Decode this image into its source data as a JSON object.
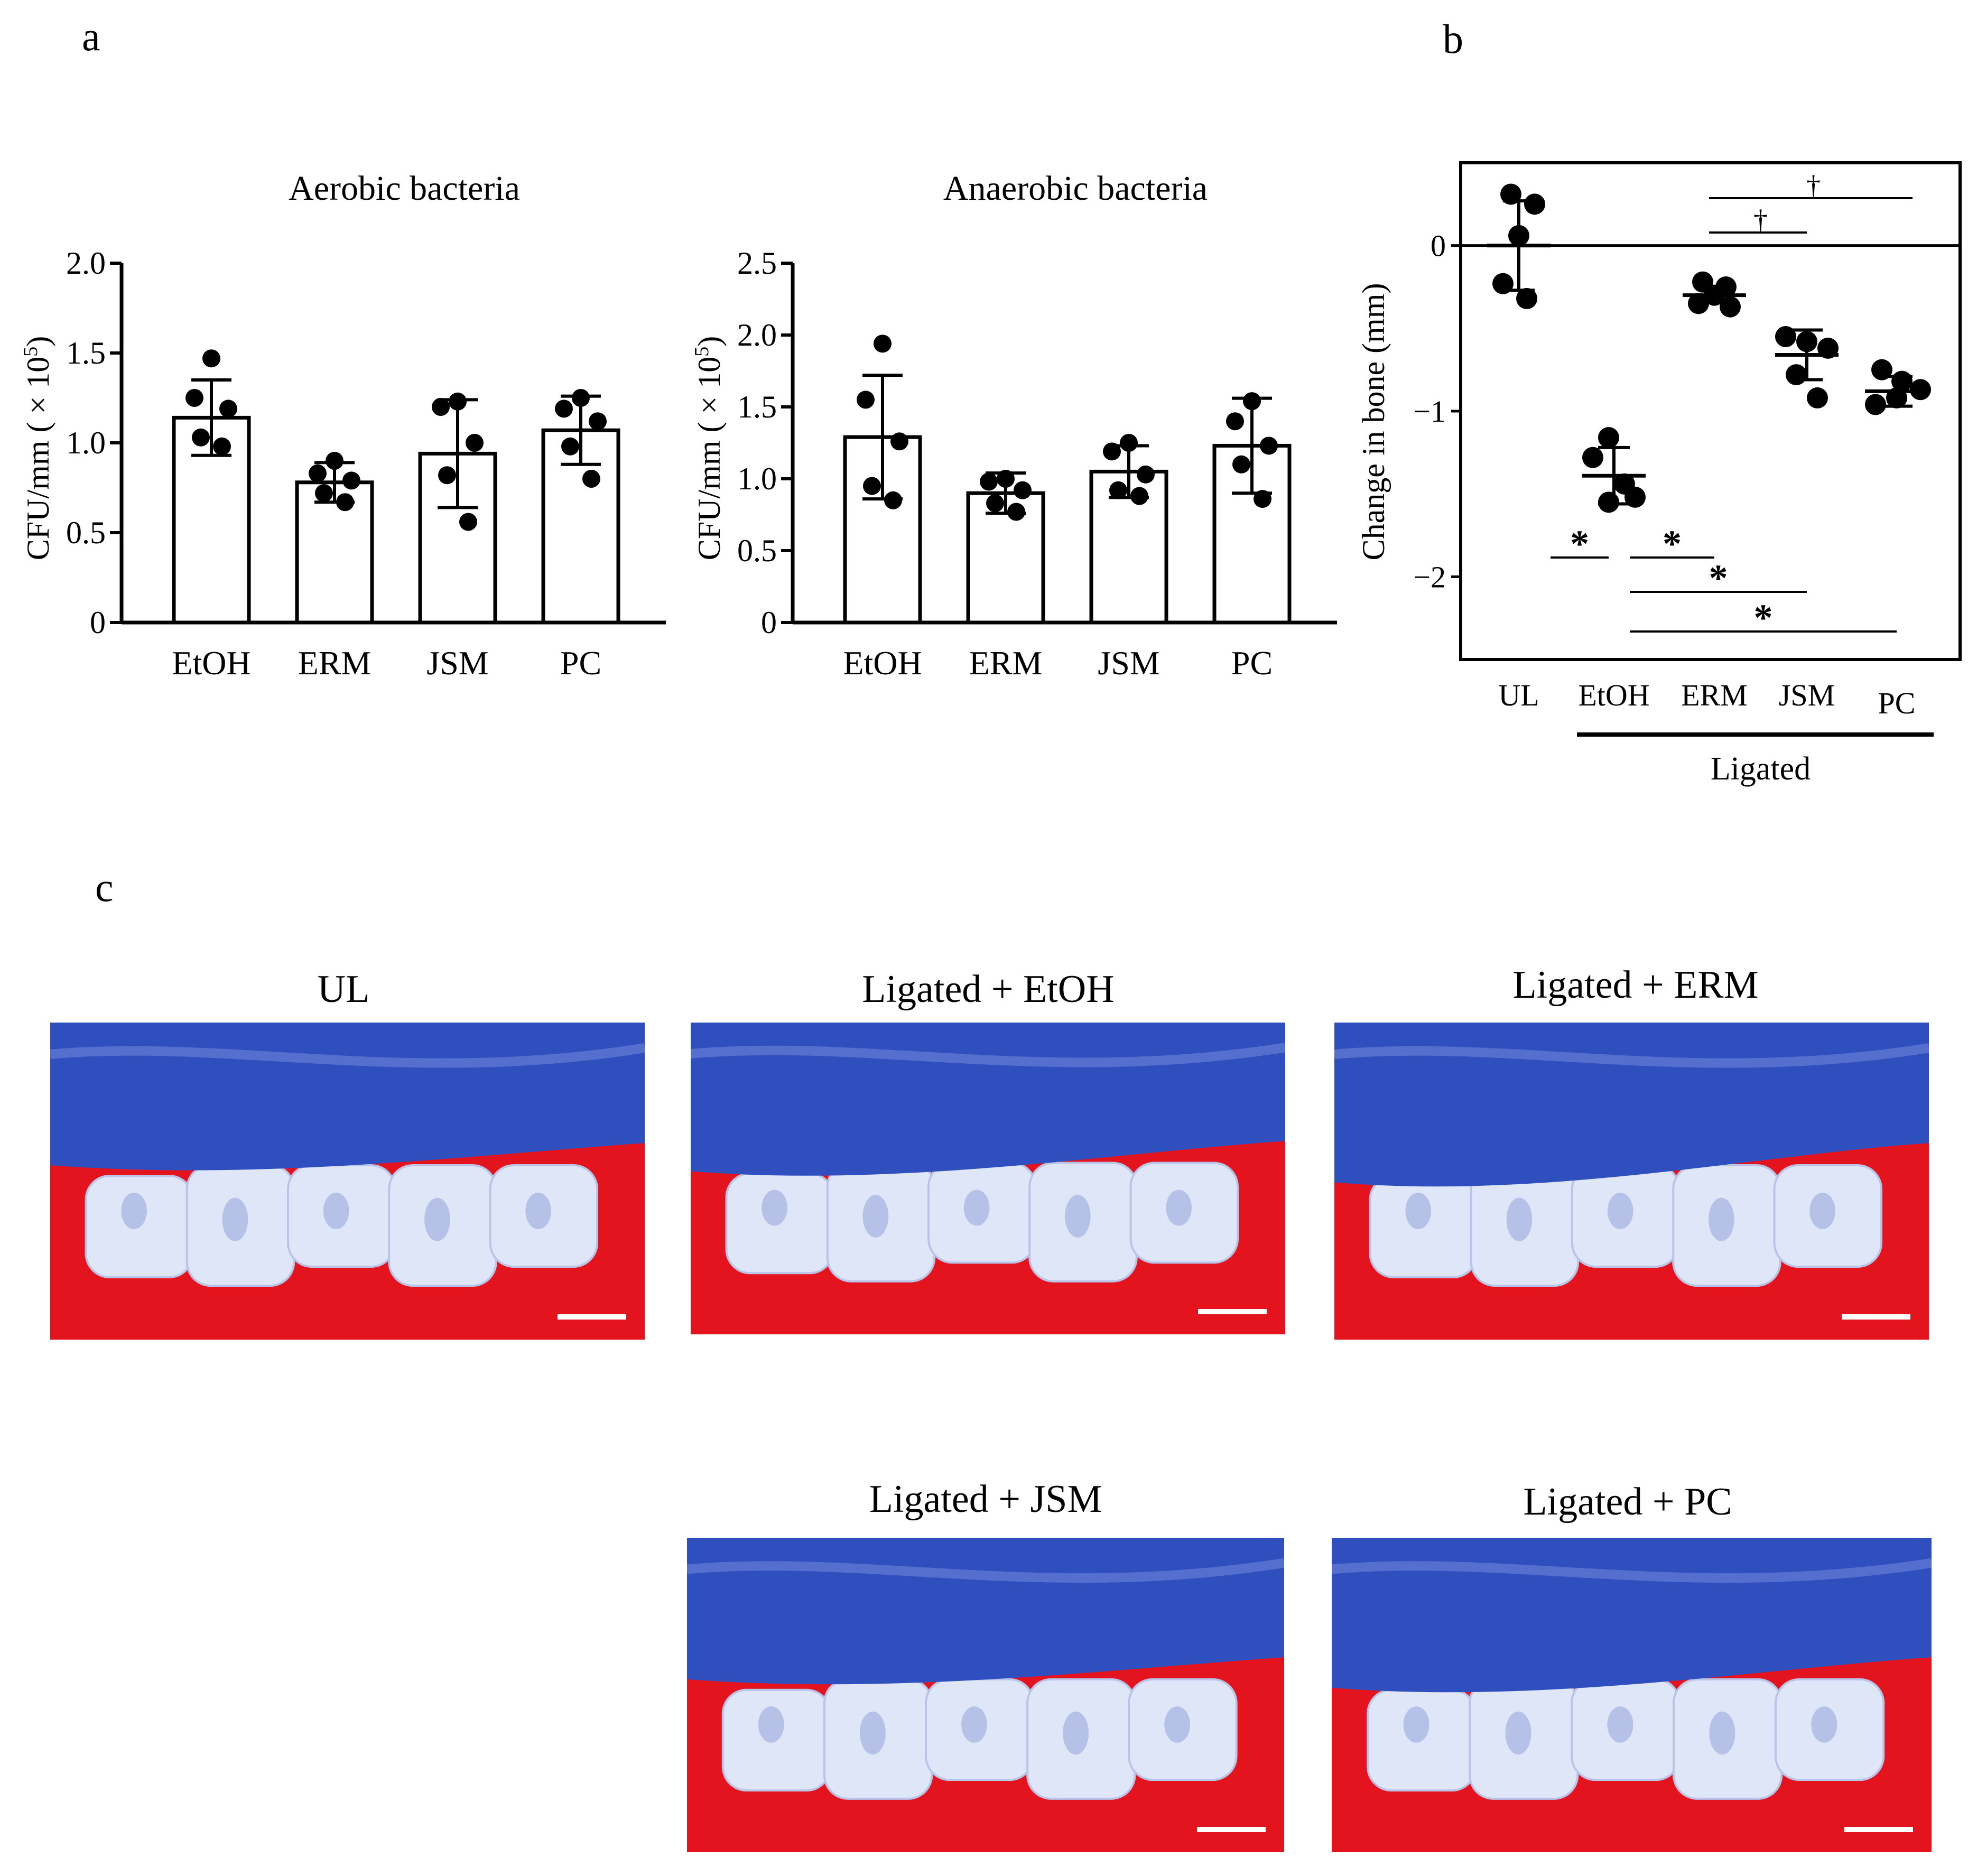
{
  "panel_labels": {
    "a": "a",
    "b": "b",
    "c": "c"
  },
  "chart_data": [
    {
      "id": "aerobic",
      "type": "bar",
      "title": "Aerobic bacteria",
      "ylabel": "CFU/mm (× 10⁵)",
      "ylabel_main": "CFU/mm ( × 10",
      "ylabel_sup": "5",
      "ylabel_close": ")",
      "xlabel": "",
      "categories": [
        "EtOH",
        "ERM",
        "JSM",
        "PC"
      ],
      "values": [
        1.14,
        0.78,
        0.94,
        1.07
      ],
      "errors": [
        0.21,
        0.11,
        0.3,
        0.19
      ],
      "points": [
        [
          1.47,
          1.25,
          1.19,
          1.03,
          0.98
        ],
        [
          0.9,
          0.83,
          0.79,
          0.72,
          0.67
        ],
        [
          1.23,
          1.2,
          1.0,
          0.82,
          0.56
        ],
        [
          1.25,
          1.19,
          1.12,
          0.98,
          0.8
        ]
      ],
      "ylim": [
        0,
        2.0
      ],
      "yticks": [
        "0",
        "0.5",
        "1.0",
        "1.5",
        "2.0"
      ],
      "ytick_values": [
        0,
        0.5,
        1.0,
        1.5,
        2.0
      ]
    },
    {
      "id": "anaerobic",
      "type": "bar",
      "title": "Anaerobic bacteria",
      "ylabel": "CFU/mm (× 10⁵)",
      "ylabel_main": "CFU/mm ( × 10",
      "ylabel_sup": "5",
      "ylabel_close": ")",
      "xlabel": "",
      "categories": [
        "EtOH",
        "ERM",
        "JSM",
        "PC"
      ],
      "values": [
        1.29,
        0.9,
        1.05,
        1.23
      ],
      "errors": [
        0.43,
        0.14,
        0.18,
        0.33
      ],
      "points": [
        [
          1.94,
          1.55,
          1.26,
          0.95,
          0.85
        ],
        [
          1.0,
          0.98,
          0.92,
          0.83,
          0.77
        ],
        [
          1.25,
          1.19,
          1.03,
          0.92,
          0.88
        ],
        [
          1.54,
          1.4,
          1.23,
          1.1,
          0.86
        ]
      ],
      "ylim": [
        0,
        2.5
      ],
      "yticks": [
        "0",
        "0.5",
        "1.0",
        "1.5",
        "2.0",
        "2.5"
      ],
      "ytick_values": [
        0,
        0.5,
        1.0,
        1.5,
        2.0,
        2.5
      ]
    },
    {
      "id": "bone",
      "type": "scatter",
      "title": "",
      "ylabel": "Change in bone (mm)",
      "xlabel": "",
      "categories": [
        "UL",
        "EtOH",
        "ERM",
        "JSM",
        "PC"
      ],
      "group_label": "Ligated",
      "values": [
        0.0,
        -1.39,
        -0.3,
        -0.66,
        -0.88
      ],
      "errors": [
        0.27,
        0.17,
        0.04,
        0.15,
        0.09
      ],
      "points": [
        [
          0.31,
          0.25,
          0.06,
          -0.23,
          -0.32
        ],
        [
          -1.16,
          -1.28,
          -1.44,
          -1.52,
          -1.55
        ],
        [
          -0.22,
          -0.25,
          -0.3,
          -0.35,
          -0.37
        ],
        [
          -0.55,
          -0.58,
          -0.62,
          -0.78,
          -0.92
        ],
        [
          -0.75,
          -0.82,
          -0.87,
          -0.92,
          -0.96
        ]
      ],
      "ylim": [
        -2.5,
        0.5
      ],
      "yticks": [
        "0",
        "−1",
        "−2"
      ],
      "ytick_values": [
        0,
        -1,
        -2
      ],
      "sig_dagger": [
        {
          "from": "ERM",
          "to": "JSM",
          "symbol": "†"
        },
        {
          "from": "ERM",
          "to": "PC",
          "symbol": "†"
        }
      ],
      "sig_star": [
        {
          "from": "UL",
          "to": "EtOH",
          "symbol": "*"
        },
        {
          "from": "EtOH",
          "to": "ERM",
          "symbol": "*"
        },
        {
          "from": "EtOH",
          "to": "JSM",
          "symbol": "*"
        },
        {
          "from": "EtOH",
          "to": "PC",
          "symbol": "*"
        }
      ]
    }
  ],
  "photos": [
    {
      "title": "UL"
    },
    {
      "title": "Ligated + EtOH"
    },
    {
      "title": "Ligated + ERM"
    },
    {
      "title": "Ligated + JSM"
    },
    {
      "title": "Ligated + PC"
    }
  ],
  "colors": {
    "bar_fill": "#ffffff",
    "bar_stroke": "#000000",
    "point": "#000000",
    "sig_symbol": "#555555",
    "photo_background": "#e4141f",
    "photo_tissue": "#2f4fbf",
    "photo_tooth": "#dfe6f7"
  }
}
